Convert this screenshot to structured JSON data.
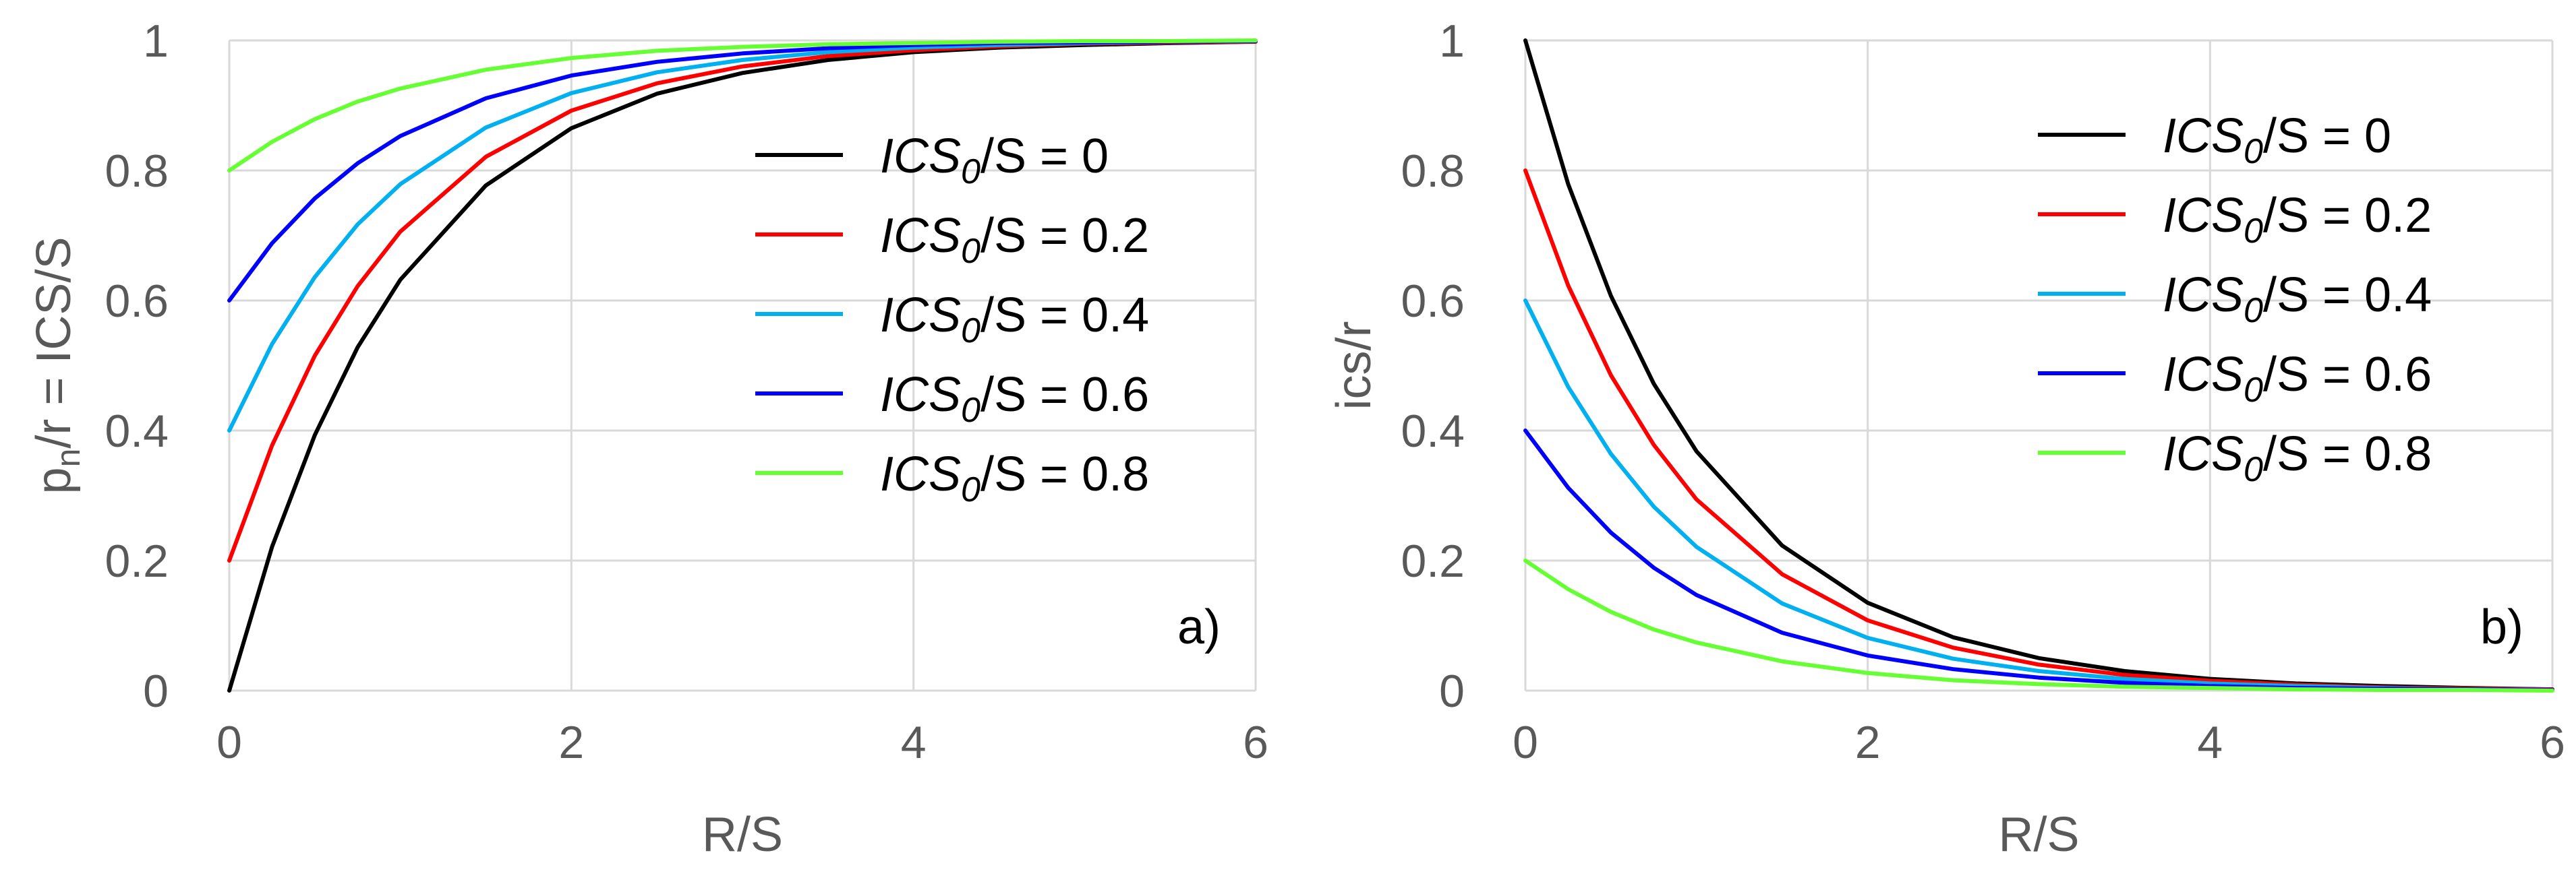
{
  "chart_data": [
    {
      "type": "line",
      "panel_label": "a)",
      "xlabel": "R/S",
      "ylabel_main": "p",
      "ylabel_sub": "n",
      "ylabel_rest": "/r = ICS/S",
      "xlim": [
        0,
        6
      ],
      "ylim": [
        0,
        1
      ],
      "xticks": [
        0,
        2,
        4,
        6
      ],
      "yticks": [
        0,
        0.2,
        0.4,
        0.6,
        0.8,
        1
      ],
      "xtick_labels": [
        "0",
        "2",
        "4",
        "6"
      ],
      "ytick_labels": [
        "0",
        "0.2",
        "0.4",
        "0.6",
        "0.8",
        "1"
      ],
      "grid": true,
      "legend_position": "center-right",
      "x": [
        0,
        0.25,
        0.5,
        0.75,
        1,
        1.5,
        2,
        2.5,
        3,
        3.5,
        4,
        4.5,
        5,
        5.5,
        6
      ],
      "series": [
        {
          "name": "ICS0/S = 0",
          "legend_main": "ICS",
          "legend_sub": "0",
          "legend_rest": "/S = 0",
          "color": "#000000",
          "values": [
            0.0,
            0.221,
            0.393,
            0.528,
            0.632,
            0.777,
            0.865,
            0.918,
            0.95,
            0.97,
            0.982,
            0.989,
            0.993,
            0.996,
            0.998
          ]
        },
        {
          "name": "ICS0/S = 0.2",
          "legend_main": "ICS",
          "legend_sub": "0",
          "legend_rest": "/S = 0.2",
          "color": "#ff0000",
          "values": [
            0.2,
            0.377,
            0.515,
            0.622,
            0.706,
            0.821,
            0.892,
            0.934,
            0.96,
            0.976,
            0.985,
            0.991,
            0.995,
            0.997,
            0.998
          ]
        },
        {
          "name": "ICS0/S = 0.4",
          "legend_main": "ICS",
          "legend_sub": "0",
          "legend_rest": "/S = 0.4",
          "color": "#00b0f0",
          "values": [
            0.4,
            0.533,
            0.636,
            0.717,
            0.779,
            0.866,
            0.919,
            0.951,
            0.97,
            0.982,
            0.989,
            0.993,
            0.996,
            0.998,
            0.999
          ]
        },
        {
          "name": "ICS0/S = 0.6",
          "legend_main": "ICS",
          "legend_sub": "0",
          "legend_rest": "/S = 0.6",
          "color": "#0000ff",
          "values": [
            0.6,
            0.688,
            0.757,
            0.811,
            0.853,
            0.911,
            0.946,
            0.967,
            0.98,
            0.988,
            0.993,
            0.996,
            0.997,
            0.998,
            0.999
          ]
        },
        {
          "name": "ICS0/S = 0.8",
          "legend_main": "ICS",
          "legend_sub": "0",
          "legend_rest": "/S = 0.8",
          "color": "#66ff33",
          "values": [
            0.8,
            0.844,
            0.879,
            0.906,
            0.926,
            0.955,
            0.973,
            0.984,
            0.99,
            0.994,
            0.996,
            0.998,
            0.999,
            0.999,
            1.0
          ]
        }
      ]
    },
    {
      "type": "line",
      "panel_label": "b)",
      "xlabel": "R/S",
      "ylabel_main": "ics/r",
      "xlim": [
        0,
        6
      ],
      "ylim": [
        0,
        1
      ],
      "xticks": [
        0,
        2,
        4,
        6
      ],
      "yticks": [
        0,
        0.2,
        0.4,
        0.6,
        0.8,
        1
      ],
      "xtick_labels": [
        "0",
        "2",
        "4",
        "6"
      ],
      "ytick_labels": [
        "0",
        "0.2",
        "0.4",
        "0.6",
        "0.8",
        "1"
      ],
      "grid": true,
      "legend_position": "top-right",
      "x": [
        0,
        0.25,
        0.5,
        0.75,
        1,
        1.5,
        2,
        2.5,
        3,
        3.5,
        4,
        4.5,
        5,
        5.5,
        6
      ],
      "series": [
        {
          "name": "ICS0/S = 0",
          "legend_main": "ICS",
          "legend_sub": "0",
          "legend_rest": "/S = 0",
          "color": "#000000",
          "values": [
            1.0,
            0.779,
            0.607,
            0.472,
            0.368,
            0.223,
            0.135,
            0.082,
            0.05,
            0.03,
            0.018,
            0.011,
            0.007,
            0.004,
            0.002
          ]
        },
        {
          "name": "ICS0/S = 0.2",
          "legend_main": "ICS",
          "legend_sub": "0",
          "legend_rest": "/S = 0.2",
          "color": "#ff0000",
          "values": [
            0.8,
            0.623,
            0.485,
            0.378,
            0.294,
            0.179,
            0.108,
            0.066,
            0.04,
            0.024,
            0.015,
            0.009,
            0.005,
            0.003,
            0.002
          ]
        },
        {
          "name": "ICS0/S = 0.4",
          "legend_main": "ICS",
          "legend_sub": "0",
          "legend_rest": "/S = 0.4",
          "color": "#00b0f0",
          "values": [
            0.6,
            0.467,
            0.364,
            0.283,
            0.221,
            0.134,
            0.081,
            0.049,
            0.03,
            0.018,
            0.011,
            0.007,
            0.004,
            0.002,
            0.001
          ]
        },
        {
          "name": "ICS0/S = 0.6",
          "legend_main": "ICS",
          "legend_sub": "0",
          "legend_rest": "/S = 0.6",
          "color": "#0000ff",
          "values": [
            0.4,
            0.312,
            0.243,
            0.189,
            0.147,
            0.089,
            0.054,
            0.033,
            0.02,
            0.012,
            0.007,
            0.004,
            0.003,
            0.002,
            0.001
          ]
        },
        {
          "name": "ICS0/S = 0.8",
          "legend_main": "ICS",
          "legend_sub": "0",
          "legend_rest": "/S = 0.8",
          "color": "#66ff33",
          "values": [
            0.2,
            0.156,
            0.121,
            0.094,
            0.074,
            0.045,
            0.027,
            0.016,
            0.01,
            0.006,
            0.004,
            0.002,
            0.001,
            0.001,
            0.0
          ]
        }
      ]
    }
  ]
}
